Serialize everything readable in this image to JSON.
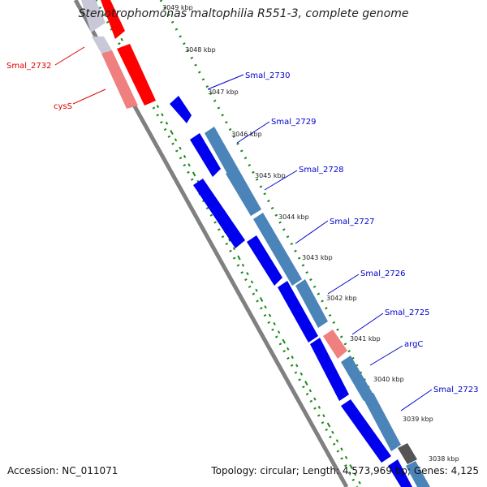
{
  "header": {
    "title": "Stenotrophomonas maltophilia R551-3, complete genome"
  },
  "footer": {
    "accession": "Accession: NC_011071",
    "summary": "Topology: circular; Length: 4,573,969 bp; Genes: 4,125"
  },
  "colors": {
    "forward_gene": "#0000ee",
    "cds_band": "#4a84b8",
    "reverse_gene": "#ff0000",
    "reverse_band": "#f08080",
    "backbone": "#808080",
    "tick": "#1a8a1a",
    "label_blue": "#0000cc",
    "label_red": "#dd0000"
  },
  "kbp_ticks": [
    {
      "id": "3049",
      "label": "3049 kbp"
    },
    {
      "id": "3048",
      "label": "3048 kbp"
    },
    {
      "id": "3047",
      "label": "3047 kbp"
    },
    {
      "id": "3046",
      "label": "3046 kbp"
    },
    {
      "id": "3045",
      "label": "3045 kbp"
    },
    {
      "id": "3044",
      "label": "3044 kbp"
    },
    {
      "id": "3043",
      "label": "3043 kbp"
    },
    {
      "id": "3042",
      "label": "3042 kbp"
    },
    {
      "id": "3041",
      "label": "3041 kbp"
    },
    {
      "id": "3040",
      "label": "3040 kbp"
    },
    {
      "id": "3039",
      "label": "3039 kbp"
    },
    {
      "id": "3038",
      "label": "3038 kbp"
    }
  ],
  "gene_labels": [
    {
      "id": "smal2732",
      "text": "Smal_2732",
      "color": "red"
    },
    {
      "id": "cyss",
      "text": "cysS",
      "color": "red"
    },
    {
      "id": "smal2730",
      "text": "Smal_2730",
      "color": "blue"
    },
    {
      "id": "smal2729",
      "text": "Smal_2729",
      "color": "blue"
    },
    {
      "id": "smal2728",
      "text": "Smal_2728",
      "color": "blue"
    },
    {
      "id": "smal2727",
      "text": "Smal_2727",
      "color": "blue"
    },
    {
      "id": "smal2726",
      "text": "Smal_2726",
      "color": "blue"
    },
    {
      "id": "smal2725",
      "text": "Smal_2725",
      "color": "blue"
    },
    {
      "id": "argc",
      "text": "argC",
      "color": "blue"
    },
    {
      "id": "smal2723",
      "text": "Smal_2723",
      "color": "blue"
    }
  ]
}
